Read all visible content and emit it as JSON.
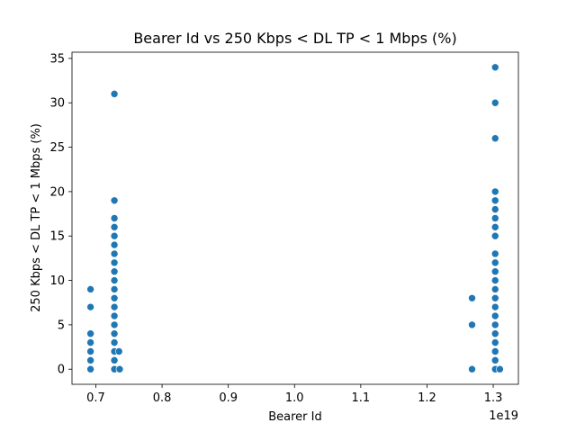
{
  "chart_data": {
    "type": "scatter",
    "title": "Bearer Id vs 250 Kbps < DL TP < 1 Mbps (%)",
    "xlabel": "Bearer Id",
    "ylabel": "250 Kbps < DL TP < 1 Mbps (%)",
    "x_offset_label": "1e19",
    "xlim": [
      0.664,
      1.338
    ],
    "ylim": [
      -1.7,
      35.7
    ],
    "x_ticks": [
      0.7,
      0.8,
      0.9,
      1.0,
      1.1,
      1.2,
      1.3
    ],
    "x_tick_labels": [
      "0.7",
      "0.8",
      "0.9",
      "1.0",
      "1.1",
      "1.2",
      "1.3"
    ],
    "y_ticks": [
      0,
      5,
      10,
      15,
      20,
      25,
      30,
      35
    ],
    "y_tick_labels": [
      "0",
      "5",
      "10",
      "15",
      "20",
      "25",
      "30",
      "35"
    ],
    "grid": false,
    "marker_color": "#1f77b4",
    "series": [
      {
        "name": "",
        "points": [
          [
            0.692,
            0
          ],
          [
            0.692,
            1
          ],
          [
            0.692,
            2
          ],
          [
            0.692,
            3
          ],
          [
            0.692,
            4
          ],
          [
            0.692,
            7
          ],
          [
            0.692,
            9
          ],
          [
            0.728,
            0
          ],
          [
            0.728,
            1
          ],
          [
            0.728,
            2
          ],
          [
            0.728,
            3
          ],
          [
            0.728,
            4
          ],
          [
            0.728,
            5
          ],
          [
            0.728,
            6
          ],
          [
            0.728,
            7
          ],
          [
            0.728,
            8
          ],
          [
            0.728,
            9
          ],
          [
            0.728,
            10
          ],
          [
            0.728,
            11
          ],
          [
            0.728,
            12
          ],
          [
            0.728,
            13
          ],
          [
            0.728,
            14
          ],
          [
            0.728,
            15
          ],
          [
            0.728,
            16
          ],
          [
            0.728,
            17
          ],
          [
            0.728,
            19
          ],
          [
            0.728,
            31
          ],
          [
            0.735,
            2
          ],
          [
            0.736,
            0
          ],
          [
            1.268,
            0
          ],
          [
            1.268,
            5
          ],
          [
            1.268,
            8
          ],
          [
            1.303,
            0
          ],
          [
            1.303,
            1
          ],
          [
            1.303,
            2
          ],
          [
            1.303,
            3
          ],
          [
            1.303,
            4
          ],
          [
            1.303,
            5
          ],
          [
            1.303,
            6
          ],
          [
            1.303,
            7
          ],
          [
            1.303,
            8
          ],
          [
            1.303,
            9
          ],
          [
            1.303,
            10
          ],
          [
            1.303,
            11
          ],
          [
            1.303,
            12
          ],
          [
            1.303,
            13
          ],
          [
            1.303,
            15
          ],
          [
            1.303,
            16
          ],
          [
            1.303,
            17
          ],
          [
            1.303,
            18
          ],
          [
            1.303,
            19
          ],
          [
            1.303,
            20
          ],
          [
            1.303,
            26
          ],
          [
            1.303,
            30
          ],
          [
            1.303,
            34
          ],
          [
            1.31,
            0
          ]
        ]
      }
    ]
  }
}
